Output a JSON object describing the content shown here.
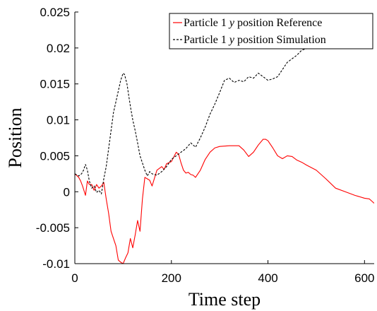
{
  "chart_data": {
    "type": "line",
    "title": "",
    "xlabel": "Time step",
    "ylabel": "Position",
    "xlim": [
      0,
      620
    ],
    "ylim": [
      -0.01,
      0.025
    ],
    "xticks": [
      "0",
      "200",
      "400",
      "600"
    ],
    "xtick_values": [
      0,
      200,
      400,
      600
    ],
    "yticks": [
      "-0.01",
      "-0.005",
      "0",
      "0.005",
      "0.01",
      "0.015",
      "0.02",
      "0.025"
    ],
    "ytick_values": [
      -0.01,
      -0.005,
      0,
      0.005,
      0.01,
      0.015,
      0.02,
      0.025
    ],
    "grid": false,
    "legend_position": "top-right",
    "series": [
      {
        "name": "Particle 1 y position Reference",
        "legend_prefix": "Particle 1 ",
        "legend_var": "y",
        "legend_suffix": " position Reference",
        "color": "#ff0000",
        "style": "solid",
        "x": [
          0,
          8,
          12,
          16,
          22,
          26,
          30,
          35,
          40,
          45,
          50,
          55,
          60,
          65,
          70,
          75,
          80,
          85,
          90,
          95,
          100,
          105,
          110,
          115,
          120,
          125,
          130,
          135,
          140,
          145,
          150,
          155,
          160,
          170,
          180,
          185,
          190,
          200,
          210,
          215,
          220,
          225,
          230,
          235,
          240,
          245,
          250,
          255,
          260,
          270,
          280,
          290,
          300,
          320,
          340,
          350,
          360,
          370,
          380,
          390,
          395,
          400,
          410,
          420,
          430,
          440,
          450,
          460,
          470,
          480,
          500,
          520,
          540,
          560,
          580,
          600,
          610,
          615,
          620
        ],
        "y": [
          0.0025,
          0.002,
          0.0015,
          0.0008,
          -0.0005,
          0.0015,
          0.001,
          0.001,
          0.0002,
          0.001,
          0.0005,
          0.0008,
          0.0013,
          -0.001,
          -0.003,
          -0.0055,
          -0.0065,
          -0.0075,
          -0.0095,
          -0.0098,
          -0.01,
          -0.0092,
          -0.0085,
          -0.0065,
          -0.0078,
          -0.006,
          -0.004,
          -0.0055,
          -0.001,
          0.002,
          0.0018,
          0.0016,
          0.0008,
          0.003,
          0.0035,
          0.0031,
          0.0039,
          0.0042,
          0.0055,
          0.0052,
          0.004,
          0.003,
          0.0026,
          0.0027,
          0.0024,
          0.0023,
          0.002,
          0.0025,
          0.003,
          0.0045,
          0.0055,
          0.0061,
          0.0063,
          0.0064,
          0.0064,
          0.0058,
          0.0049,
          0.0055,
          0.0065,
          0.0073,
          0.0073,
          0.0071,
          0.0061,
          0.005,
          0.0046,
          0.005,
          0.0049,
          0.0044,
          0.0041,
          0.0037,
          0.003,
          0.0018,
          0.0005,
          0.0,
          -0.0005,
          -0.0009,
          -0.001,
          -0.0013,
          -0.0016
        ]
      },
      {
        "name": "Particle 1 y position Simulation",
        "legend_prefix": "Particle 1 ",
        "legend_var": "y",
        "legend_suffix": " position Simulation",
        "color": "#000000",
        "style": "dashed",
        "x": [
          0,
          8,
          14,
          18,
          22,
          26,
          30,
          35,
          40,
          45,
          50,
          55,
          60,
          65,
          70,
          75,
          80,
          85,
          90,
          95,
          100,
          103,
          108,
          112,
          116,
          120,
          125,
          130,
          135,
          140,
          145,
          150,
          155,
          160,
          170,
          180,
          190,
          200,
          210,
          220,
          230,
          240,
          250,
          260,
          270,
          280,
          290,
          300,
          310,
          320,
          330,
          340,
          350,
          360,
          370,
          380,
          390,
          400,
          410,
          420,
          430,
          440,
          450,
          460,
          470,
          480,
          490
        ],
        "y": [
          0.0025,
          0.0022,
          0.0025,
          0.003,
          0.0038,
          0.003,
          0.0015,
          0.0005,
          0.0008,
          -0.0001,
          0.0002,
          -0.0003,
          0.0018,
          0.0035,
          0.006,
          0.0085,
          0.011,
          0.0125,
          0.014,
          0.0155,
          0.0165,
          0.0163,
          0.015,
          0.0132,
          0.0115,
          0.01,
          0.0085,
          0.0068,
          0.005,
          0.004,
          0.003,
          0.0022,
          0.0028,
          0.0025,
          0.0023,
          0.0028,
          0.0035,
          0.0045,
          0.005,
          0.0055,
          0.006,
          0.0068,
          0.0062,
          0.0075,
          0.009,
          0.0108,
          0.0122,
          0.0138,
          0.0155,
          0.0158,
          0.0152,
          0.0155,
          0.0153,
          0.016,
          0.0158,
          0.0165,
          0.016,
          0.0155,
          0.0157,
          0.016,
          0.017,
          0.018,
          0.0185,
          0.019,
          0.0197,
          0.0199,
          0.0202
        ]
      }
    ]
  }
}
